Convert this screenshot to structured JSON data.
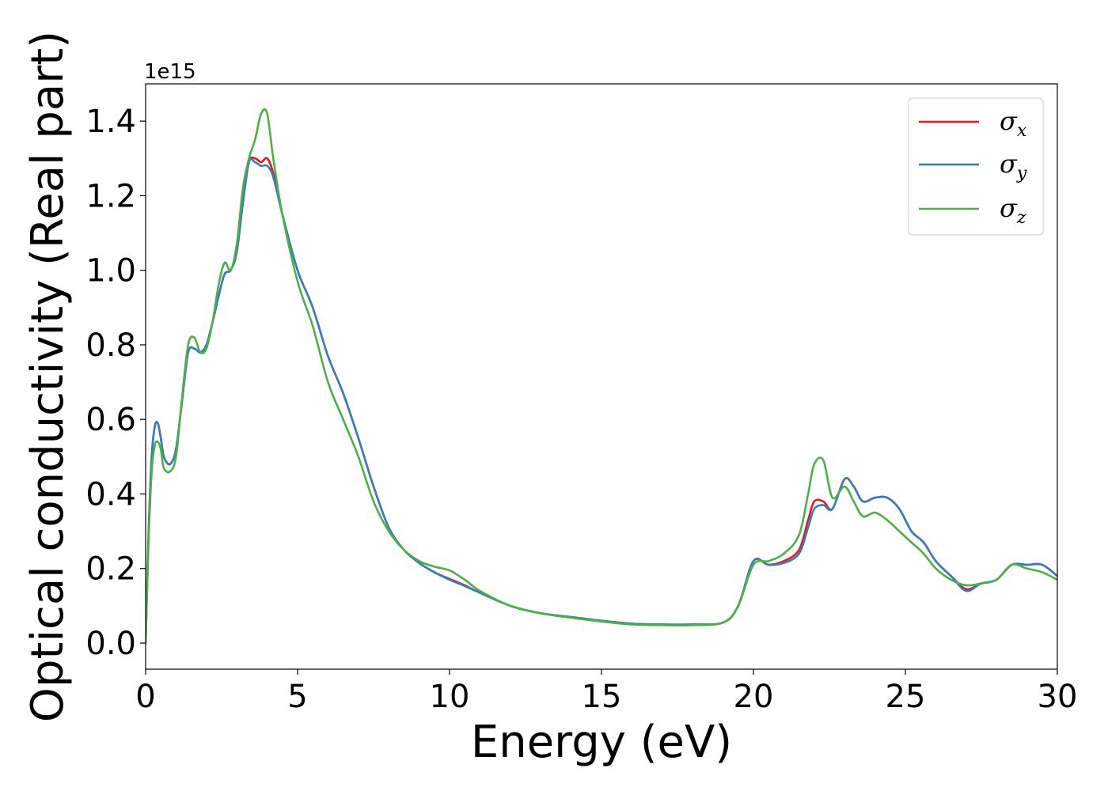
{
  "chart_data": {
    "type": "line",
    "title": "",
    "xlabel": "Energy (eV)",
    "ylabel": "Optical conductivity (Real part)",
    "y_offset_text": "1e15",
    "xlim": [
      0,
      30
    ],
    "ylim": [
      -0.07,
      1.5
    ],
    "xticks": [
      0,
      5,
      10,
      15,
      20,
      25,
      30
    ],
    "xtick_labels": [
      "0",
      "5",
      "10",
      "15",
      "20",
      "25",
      "30"
    ],
    "yticks": [
      0.0,
      0.2,
      0.4,
      0.6,
      0.8,
      1.0,
      1.2,
      1.4
    ],
    "ytick_labels": [
      "0.0",
      "0.2",
      "0.4",
      "0.6",
      "0.8",
      "1.0",
      "1.2",
      "1.4"
    ],
    "grid": false,
    "legend_position": "top-right",
    "series": [
      {
        "name": "σx",
        "legend_symbol": "σ",
        "legend_subscript": "x",
        "color": "#e41a1c",
        "x": [
          0,
          0.1,
          0.2,
          0.3,
          0.4,
          0.5,
          0.6,
          0.8,
          1.0,
          1.2,
          1.4,
          1.6,
          1.8,
          2.0,
          2.2,
          2.4,
          2.6,
          2.8,
          3.0,
          3.2,
          3.4,
          3.6,
          3.8,
          4.0,
          4.2,
          4.5,
          5.0,
          5.5,
          6.0,
          6.5,
          7.0,
          7.5,
          8.0,
          8.5,
          9.0,
          9.5,
          10.0,
          10.5,
          11.0,
          12.0,
          13.0,
          14.0,
          15.0,
          16.0,
          17.0,
          18.0,
          19.0,
          19.5,
          20.0,
          20.5,
          21.0,
          21.5,
          21.8,
          22.0,
          22.3,
          22.6,
          23.0,
          23.3,
          23.6,
          24.0,
          24.4,
          24.8,
          25.2,
          25.6,
          26.0,
          26.5,
          27.0,
          27.5,
          28.0,
          28.5,
          29.0,
          29.5,
          30.0
        ],
        "y": [
          0.0,
          0.3,
          0.5,
          0.58,
          0.59,
          0.55,
          0.5,
          0.48,
          0.52,
          0.65,
          0.78,
          0.79,
          0.78,
          0.8,
          0.86,
          0.93,
          0.99,
          1.0,
          1.05,
          1.18,
          1.29,
          1.3,
          1.29,
          1.3,
          1.26,
          1.15,
          1.0,
          0.9,
          0.77,
          0.67,
          0.55,
          0.42,
          0.31,
          0.25,
          0.215,
          0.19,
          0.172,
          0.155,
          0.135,
          0.1,
          0.08,
          0.07,
          0.06,
          0.052,
          0.05,
          0.05,
          0.055,
          0.1,
          0.22,
          0.21,
          0.22,
          0.25,
          0.33,
          0.38,
          0.38,
          0.36,
          0.44,
          0.42,
          0.38,
          0.39,
          0.39,
          0.36,
          0.3,
          0.27,
          0.22,
          0.18,
          0.145,
          0.16,
          0.17,
          0.21,
          0.21,
          0.21,
          0.18
        ]
      },
      {
        "name": "σy",
        "legend_symbol": "σ",
        "legend_subscript": "y",
        "color": "#377eb8",
        "x": [
          0,
          0.1,
          0.2,
          0.3,
          0.4,
          0.5,
          0.6,
          0.8,
          1.0,
          1.2,
          1.4,
          1.6,
          1.8,
          2.0,
          2.2,
          2.4,
          2.6,
          2.8,
          3.0,
          3.2,
          3.4,
          3.6,
          3.8,
          4.0,
          4.2,
          4.5,
          5.0,
          5.5,
          6.0,
          6.5,
          7.0,
          7.5,
          8.0,
          8.5,
          9.0,
          9.5,
          10.0,
          10.5,
          11.0,
          12.0,
          13.0,
          14.0,
          15.0,
          16.0,
          17.0,
          18.0,
          19.0,
          19.5,
          20.0,
          20.5,
          21.0,
          21.5,
          21.8,
          22.0,
          22.3,
          22.6,
          23.0,
          23.3,
          23.6,
          24.0,
          24.4,
          24.8,
          25.2,
          25.6,
          26.0,
          26.5,
          27.0,
          27.5,
          28.0,
          28.5,
          29.0,
          29.5,
          30.0
        ],
        "y": [
          0.0,
          0.3,
          0.5,
          0.58,
          0.59,
          0.55,
          0.5,
          0.48,
          0.52,
          0.65,
          0.78,
          0.79,
          0.78,
          0.8,
          0.86,
          0.93,
          0.99,
          1.0,
          1.05,
          1.18,
          1.29,
          1.29,
          1.28,
          1.28,
          1.25,
          1.15,
          1.0,
          0.9,
          0.77,
          0.67,
          0.55,
          0.42,
          0.31,
          0.25,
          0.215,
          0.19,
          0.17,
          0.153,
          0.135,
          0.1,
          0.08,
          0.07,
          0.06,
          0.052,
          0.05,
          0.05,
          0.055,
          0.1,
          0.22,
          0.21,
          0.215,
          0.24,
          0.31,
          0.36,
          0.37,
          0.36,
          0.44,
          0.42,
          0.38,
          0.39,
          0.39,
          0.36,
          0.3,
          0.27,
          0.22,
          0.18,
          0.14,
          0.16,
          0.17,
          0.21,
          0.21,
          0.21,
          0.18
        ]
      },
      {
        "name": "σz",
        "legend_symbol": "σ",
        "legend_subscript": "z",
        "color": "#4daf4a",
        "x": [
          0,
          0.1,
          0.2,
          0.3,
          0.4,
          0.5,
          0.6,
          0.8,
          1.0,
          1.2,
          1.4,
          1.6,
          1.8,
          2.0,
          2.2,
          2.4,
          2.6,
          2.8,
          3.0,
          3.2,
          3.4,
          3.6,
          3.8,
          4.0,
          4.2,
          4.5,
          5.0,
          5.5,
          6.0,
          6.5,
          7.0,
          7.5,
          8.0,
          8.5,
          9.0,
          9.5,
          10.0,
          10.5,
          11.0,
          12.0,
          13.0,
          14.0,
          15.0,
          16.0,
          17.0,
          18.0,
          19.0,
          19.5,
          20.0,
          20.5,
          21.0,
          21.5,
          21.8,
          22.0,
          22.3,
          22.6,
          23.0,
          23.3,
          23.6,
          24.0,
          24.4,
          24.8,
          25.2,
          25.6,
          26.0,
          26.5,
          27.0,
          27.5,
          28.0,
          28.5,
          29.0,
          29.5,
          30.0
        ],
        "y": [
          0.0,
          0.28,
          0.46,
          0.53,
          0.54,
          0.52,
          0.47,
          0.46,
          0.5,
          0.66,
          0.8,
          0.82,
          0.78,
          0.79,
          0.86,
          0.96,
          1.02,
          1.0,
          1.07,
          1.22,
          1.3,
          1.35,
          1.42,
          1.42,
          1.3,
          1.15,
          0.97,
          0.85,
          0.7,
          0.6,
          0.5,
          0.38,
          0.3,
          0.25,
          0.22,
          0.205,
          0.195,
          0.17,
          0.14,
          0.1,
          0.08,
          0.068,
          0.058,
          0.05,
          0.048,
          0.048,
          0.055,
          0.1,
          0.21,
          0.22,
          0.24,
          0.29,
          0.4,
          0.48,
          0.49,
          0.39,
          0.42,
          0.38,
          0.34,
          0.35,
          0.33,
          0.3,
          0.27,
          0.24,
          0.2,
          0.17,
          0.155,
          0.16,
          0.17,
          0.21,
          0.2,
          0.19,
          0.17
        ]
      }
    ]
  }
}
